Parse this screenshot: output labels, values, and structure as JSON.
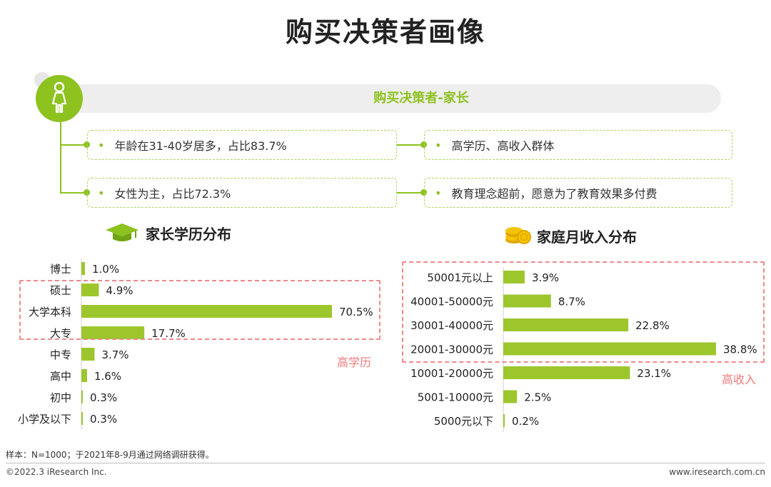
{
  "title": "购买决策者画像",
  "persona": {
    "label": "购买决策者-家长",
    "traits_left": [
      "年龄在31-40岁居多，占比83.7%",
      "女性为主，占比72.3%"
    ],
    "traits_right": [
      "高学历、高收入群体",
      "教育理念超前，愿意为了教育效果多付费"
    ],
    "bullet": "•",
    "icon": "female-person-icon"
  },
  "education": {
    "heading": "家长学历分布",
    "icon": "graduation-cap-icon",
    "highlight_label": "高学历"
  },
  "income": {
    "heading": "家庭月收入分布",
    "icon": "coins-icon",
    "highlight_label": "高收入"
  },
  "chart_data": [
    {
      "type": "bar",
      "orientation": "horizontal",
      "title": "家长学历分布",
      "categories": [
        "博士",
        "硕士",
        "大学本科",
        "大专",
        "中专",
        "高中",
        "初中",
        "小学及以下"
      ],
      "values": [
        1.0,
        4.9,
        70.5,
        17.7,
        3.7,
        1.6,
        0.3,
        0.3
      ],
      "value_labels": [
        "1.0%",
        "4.9%",
        "70.5%",
        "17.7%",
        "3.7%",
        "1.6%",
        "0.3%",
        "0.3%"
      ],
      "unit": "%",
      "color": "#9dc62d",
      "highlighted_categories": [
        "硕士",
        "大学本科",
        "大专"
      ],
      "highlight_annotation": "高学历"
    },
    {
      "type": "bar",
      "orientation": "horizontal",
      "title": "家庭月收入分布",
      "categories": [
        "50001元以上",
        "40001-50000元",
        "30001-40000元",
        "20001-30000元",
        "10001-20000元",
        "5001-10000元",
        "5000元以下"
      ],
      "values": [
        3.9,
        8.7,
        22.8,
        38.8,
        23.1,
        2.5,
        0.2
      ],
      "value_labels": [
        "3.9%",
        "8.7%",
        "22.8%",
        "38.8%",
        "23.1%",
        "2.5%",
        "0.2%"
      ],
      "unit": "%",
      "color": "#9dc62d",
      "highlighted_categories": [
        "50001元以上",
        "40001-50000元",
        "30001-40000元",
        "20001-30000元"
      ],
      "highlight_annotation": "高收入"
    }
  ],
  "footnote": "样本：N=1000；于2021年8-9月通过网络调研获得。",
  "copyright": "©2022.3 iResearch Inc.",
  "website": "www.iresearch.com.cn",
  "colors": {
    "accent": "#8dc21f",
    "bar": "#9dc62d",
    "highlight": "#ee8a8a",
    "coin": "#f5c400"
  }
}
